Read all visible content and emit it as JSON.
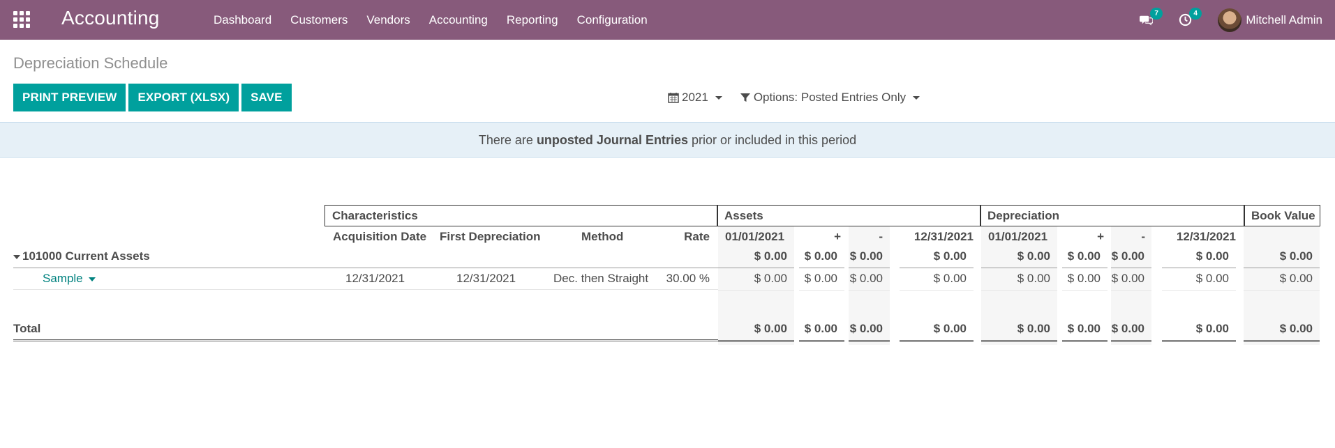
{
  "navbar": {
    "app_title": "Accounting",
    "menu": [
      "Dashboard",
      "Customers",
      "Vendors",
      "Accounting",
      "Reporting",
      "Configuration"
    ],
    "messages_count": "7",
    "activities_count": "4",
    "user_name": "Mitchell Admin"
  },
  "control_panel": {
    "title": "Depreciation Schedule",
    "buttons": {
      "print_preview": "PRINT PREVIEW",
      "export": "EXPORT (XLSX)",
      "save": "SAVE"
    },
    "period_filter": "2021",
    "options_filter": "Options: Posted Entries Only"
  },
  "alert": {
    "prefix": "There are",
    "bold": "unposted Journal Entries",
    "suffix": "prior or included in this period"
  },
  "report": {
    "groups": {
      "characteristics": "Characteristics",
      "assets": "Assets",
      "depreciation": "Depreciation",
      "book_value": "Book Value"
    },
    "columns": {
      "acquisition_date": "Acquisition Date",
      "first_depreciation": "First Depreciation",
      "method": "Method",
      "rate": "Rate",
      "assets_start": "01/01/2021",
      "assets_plus": "+",
      "assets_minus": "-",
      "assets_end": "12/31/2021",
      "dep_start": "01/01/2021",
      "dep_plus": "+",
      "dep_minus": "-",
      "dep_end": "12/31/2021"
    },
    "group_row": {
      "label": "101000 Current Assets",
      "values": [
        "$ 0.00",
        "$ 0.00",
        "$ 0.00",
        "$ 0.00",
        "$ 0.00",
        "$ 0.00",
        "$ 0.00",
        "$ 0.00",
        "$ 0.00"
      ]
    },
    "asset_row": {
      "label": "Sample",
      "acquisition_date": "12/31/2021",
      "first_depreciation": "12/31/2021",
      "method": "Dec. then Straight",
      "rate": "30.00 %",
      "values": [
        "$ 0.00",
        "$ 0.00",
        "$ 0.00",
        "$ 0.00",
        "$ 0.00",
        "$ 0.00",
        "$ 0.00",
        "$ 0.00",
        "$ 0.00"
      ]
    },
    "total_row": {
      "label": "Total",
      "values": [
        "$ 0.00",
        "$ 0.00",
        "$ 0.00",
        "$ 0.00",
        "$ 0.00",
        "$ 0.00",
        "$ 0.00",
        "$ 0.00",
        "$ 0.00"
      ]
    }
  }
}
